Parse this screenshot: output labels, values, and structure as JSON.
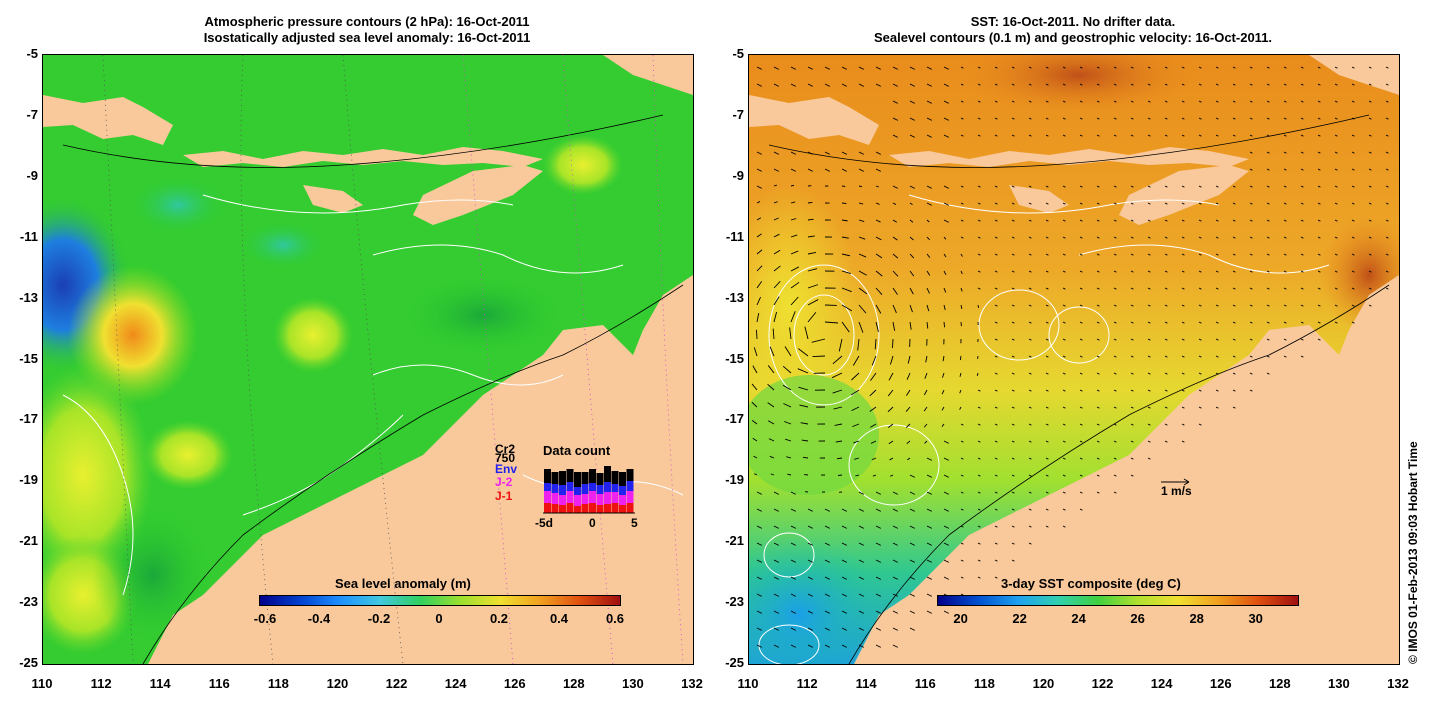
{
  "left_panel": {
    "title_line1": "Atmospheric pressure contours (2 hPa): 16-Oct-2011",
    "title_line2": "Isostatically adjusted sea level anomaly: 16-Oct-2011",
    "colorbar_label": "Sea level anomaly (m)",
    "colorbar_ticks": [
      "-0.6",
      "-0.4",
      "-0.2",
      "0",
      "0.2",
      "0.4",
      "0.6"
    ],
    "legend": {
      "items": [
        {
          "label": "Cr2",
          "color": "#000000"
        },
        {
          "label": "750",
          "color": "#000000"
        },
        {
          "label": "Env",
          "color": "#2222ee"
        },
        {
          "label": "J-2",
          "color": "#ee22ee"
        },
        {
          "label": "J-1",
          "color": "#ee1111"
        }
      ],
      "title": "Data count",
      "axis_ticks": [
        "-5d",
        "0",
        "5"
      ]
    }
  },
  "right_panel": {
    "title_line1": "SST: 16-Oct-2011. No drifter data.",
    "title_line2": "Sealevel contours (0.1 m) and geostrophic velocity: 16-Oct-2011.",
    "colorbar_label": "3-day SST composite (deg C)",
    "colorbar_ticks": [
      "20",
      "22",
      "24",
      "26",
      "28",
      "30"
    ],
    "velocity_scale_label": "1 m/s"
  },
  "axes": {
    "y_ticks": [
      "-5",
      "-7",
      "-9",
      "-11",
      "-13",
      "-15",
      "-17",
      "-19",
      "-21",
      "-23",
      "-25"
    ],
    "x_ticks": [
      "110",
      "112",
      "114",
      "116",
      "118",
      "120",
      "122",
      "124",
      "126",
      "128",
      "130",
      "132"
    ]
  },
  "copyright": "© IMOS 01-Feb-2013 09:03 Hobart Time",
  "colors": {
    "land": "#f9c99b",
    "ocean_green": "#2ecc2e",
    "sst_orange": "#f0a020"
  }
}
